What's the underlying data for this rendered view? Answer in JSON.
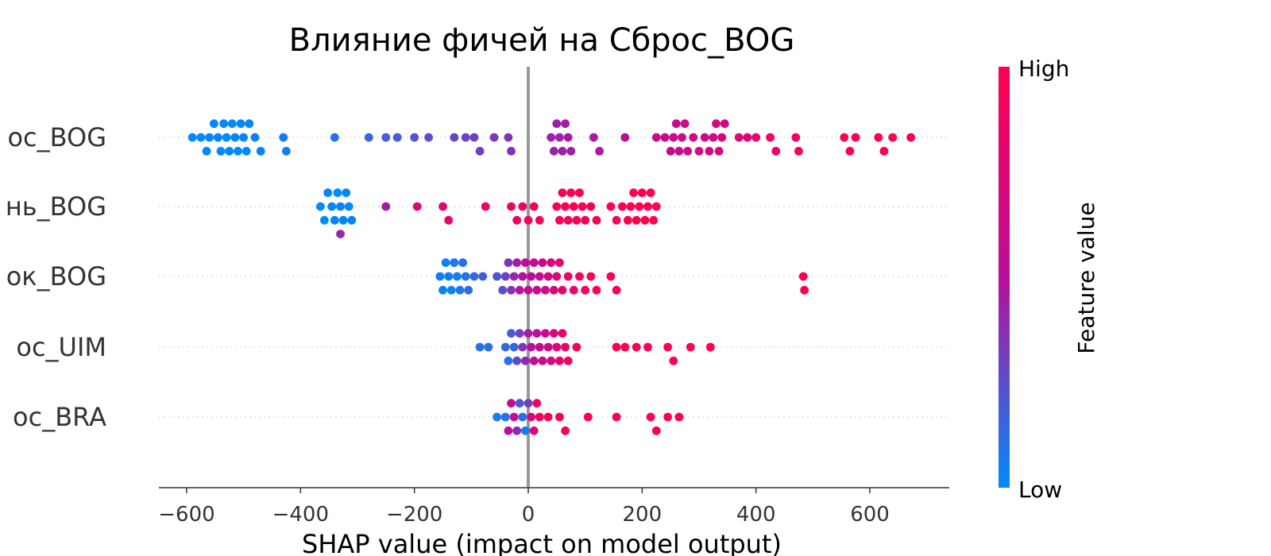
{
  "chart_data": {
    "type": "scatter",
    "title": "Влияние фичей на Сброс_BOG",
    "xlabel": "SHAP value (impact on model output)",
    "xlim": [
      -660,
      740
    ],
    "xticks": [
      -600,
      -400,
      -200,
      0,
      200,
      400,
      600
    ],
    "xtick_labels": [
      "−600",
      "−400",
      "−200",
      "0",
      "200",
      "400",
      "600"
    ],
    "features": [
      "ос_BOG",
      "нь_BOG",
      "ок_BOG",
      "ос_UIM",
      "ос_BRA"
    ],
    "colorbar": {
      "label": "Feature value",
      "high_label": "High",
      "low_label": "Low",
      "low_color": "#008afb",
      "mid_color": "#b90f9a",
      "high_color": "#ff0051"
    },
    "series": [
      {
        "name": "ос_BOG",
        "points": [
          {
            "x": -590,
            "v": 0.0
          },
          {
            "x": -575,
            "v": 0.0
          },
          {
            "x": -565,
            "v": 0.0
          },
          {
            "x": -560,
            "v": 0.02
          },
          {
            "x": -552,
            "v": 0.0
          },
          {
            "x": -545,
            "v": 0.02
          },
          {
            "x": -540,
            "v": 0.0
          },
          {
            "x": -535,
            "v": 0.0
          },
          {
            "x": -530,
            "v": 0.0
          },
          {
            "x": -525,
            "v": 0.02
          },
          {
            "x": -520,
            "v": 0.0
          },
          {
            "x": -515,
            "v": 0.03
          },
          {
            "x": -510,
            "v": 0.0
          },
          {
            "x": -505,
            "v": 0.0
          },
          {
            "x": -500,
            "v": 0.02
          },
          {
            "x": -495,
            "v": 0.0
          },
          {
            "x": -490,
            "v": 0.0
          },
          {
            "x": -480,
            "v": 0.03
          },
          {
            "x": -470,
            "v": 0.02
          },
          {
            "x": -430,
            "v": 0.05
          },
          {
            "x": -425,
            "v": 0.05
          },
          {
            "x": -340,
            "v": 0.1
          },
          {
            "x": -280,
            "v": 0.15
          },
          {
            "x": -250,
            "v": 0.18
          },
          {
            "x": -230,
            "v": 0.2
          },
          {
            "x": -200,
            "v": 0.22
          },
          {
            "x": -175,
            "v": 0.25
          },
          {
            "x": -130,
            "v": 0.28
          },
          {
            "x": -110,
            "v": 0.28
          },
          {
            "x": -95,
            "v": 0.3
          },
          {
            "x": -85,
            "v": 0.3
          },
          {
            "x": -60,
            "v": 0.33
          },
          {
            "x": -35,
            "v": 0.35
          },
          {
            "x": -30,
            "v": 0.36
          },
          {
            "x": 40,
            "v": 0.42
          },
          {
            "x": 45,
            "v": 0.42
          },
          {
            "x": 50,
            "v": 0.43
          },
          {
            "x": 55,
            "v": 0.42
          },
          {
            "x": 60,
            "v": 0.44
          },
          {
            "x": 65,
            "v": 0.43
          },
          {
            "x": 70,
            "v": 0.45
          },
          {
            "x": 75,
            "v": 0.44
          },
          {
            "x": 115,
            "v": 0.46
          },
          {
            "x": 125,
            "v": 0.46
          },
          {
            "x": 170,
            "v": 0.5
          },
          {
            "x": 225,
            "v": 0.58
          },
          {
            "x": 240,
            "v": 0.6
          },
          {
            "x": 250,
            "v": 0.62
          },
          {
            "x": 255,
            "v": 0.6
          },
          {
            "x": 260,
            "v": 0.62
          },
          {
            "x": 265,
            "v": 0.64
          },
          {
            "x": 270,
            "v": 0.62
          },
          {
            "x": 275,
            "v": 0.64
          },
          {
            "x": 280,
            "v": 0.63
          },
          {
            "x": 290,
            "v": 0.64
          },
          {
            "x": 300,
            "v": 0.66
          },
          {
            "x": 310,
            "v": 0.65
          },
          {
            "x": 318,
            "v": 0.66
          },
          {
            "x": 325,
            "v": 0.67
          },
          {
            "x": 330,
            "v": 0.68
          },
          {
            "x": 335,
            "v": 0.68
          },
          {
            "x": 340,
            "v": 0.7
          },
          {
            "x": 345,
            "v": 0.68
          },
          {
            "x": 370,
            "v": 0.74
          },
          {
            "x": 385,
            "v": 0.78
          },
          {
            "x": 400,
            "v": 0.8
          },
          {
            "x": 425,
            "v": 0.84
          },
          {
            "x": 435,
            "v": 0.86
          },
          {
            "x": 470,
            "v": 0.9
          },
          {
            "x": 475,
            "v": 0.92
          },
          {
            "x": 555,
            "v": 0.95
          },
          {
            "x": 565,
            "v": 0.96
          },
          {
            "x": 575,
            "v": 0.96
          },
          {
            "x": 615,
            "v": 0.97
          },
          {
            "x": 625,
            "v": 0.98
          },
          {
            "x": 640,
            "v": 0.98
          },
          {
            "x": 672,
            "v": 1.0
          }
        ]
      },
      {
        "name": "нь_BOG",
        "points": [
          {
            "x": -365,
            "v": 0.0
          },
          {
            "x": -358,
            "v": 0.0
          },
          {
            "x": -352,
            "v": 0.02
          },
          {
            "x": -345,
            "v": 0.0
          },
          {
            "x": -340,
            "v": 0.02
          },
          {
            "x": -335,
            "v": 0.0
          },
          {
            "x": -330,
            "v": 0.03
          },
          {
            "x": -325,
            "v": 0.0
          },
          {
            "x": -320,
            "v": 0.02
          },
          {
            "x": -315,
            "v": 0.0
          },
          {
            "x": -310,
            "v": 0.02
          },
          {
            "x": -330,
            "v": 0.4
          },
          {
            "x": -250,
            "v": 0.45
          },
          {
            "x": -195,
            "v": 0.75
          },
          {
            "x": -150,
            "v": 0.8
          },
          {
            "x": -140,
            "v": 0.82
          },
          {
            "x": -75,
            "v": 0.85
          },
          {
            "x": -30,
            "v": 0.88
          },
          {
            "x": -20,
            "v": 0.9
          },
          {
            "x": -10,
            "v": 0.9
          },
          {
            "x": 0,
            "v": 0.9
          },
          {
            "x": 10,
            "v": 0.92
          },
          {
            "x": 20,
            "v": 0.92
          },
          {
            "x": 50,
            "v": 0.95
          },
          {
            "x": 55,
            "v": 0.95
          },
          {
            "x": 60,
            "v": 0.95
          },
          {
            "x": 65,
            "v": 0.96
          },
          {
            "x": 70,
            "v": 0.96
          },
          {
            "x": 75,
            "v": 0.97
          },
          {
            "x": 80,
            "v": 0.97
          },
          {
            "x": 85,
            "v": 0.97
          },
          {
            "x": 90,
            "v": 0.96
          },
          {
            "x": 95,
            "v": 0.95
          },
          {
            "x": 100,
            "v": 0.96
          },
          {
            "x": 110,
            "v": 0.97
          },
          {
            "x": 120,
            "v": 0.96
          },
          {
            "x": 145,
            "v": 0.98
          },
          {
            "x": 155,
            "v": 0.98
          },
          {
            "x": 165,
            "v": 0.98
          },
          {
            "x": 175,
            "v": 0.99
          },
          {
            "x": 180,
            "v": 0.99
          },
          {
            "x": 185,
            "v": 0.99
          },
          {
            "x": 190,
            "v": 1.0
          },
          {
            "x": 195,
            "v": 1.0
          },
          {
            "x": 200,
            "v": 1.0
          },
          {
            "x": 205,
            "v": 1.0
          },
          {
            "x": 210,
            "v": 0.99
          },
          {
            "x": 215,
            "v": 0.99
          },
          {
            "x": 220,
            "v": 0.99
          },
          {
            "x": 225,
            "v": 0.98
          }
        ]
      },
      {
        "name": "ок_BOG",
        "points": [
          {
            "x": -155,
            "v": 0.05
          },
          {
            "x": -150,
            "v": 0.03
          },
          {
            "x": -145,
            "v": 0.05
          },
          {
            "x": -140,
            "v": 0.04
          },
          {
            "x": -135,
            "v": 0.03
          },
          {
            "x": -130,
            "v": 0.06
          },
          {
            "x": -125,
            "v": 0.05
          },
          {
            "x": -120,
            "v": 0.08
          },
          {
            "x": -115,
            "v": 0.1
          },
          {
            "x": -110,
            "v": 0.08
          },
          {
            "x": -105,
            "v": 0.12
          },
          {
            "x": -95,
            "v": 0.15
          },
          {
            "x": -80,
            "v": 0.18
          },
          {
            "x": -55,
            "v": 0.22
          },
          {
            "x": -45,
            "v": 0.25
          },
          {
            "x": -40,
            "v": 0.3
          },
          {
            "x": -35,
            "v": 0.32
          },
          {
            "x": -30,
            "v": 0.35
          },
          {
            "x": -25,
            "v": 0.4
          },
          {
            "x": -20,
            "v": 0.45
          },
          {
            "x": -15,
            "v": 0.48
          },
          {
            "x": -10,
            "v": 0.5
          },
          {
            "x": -5,
            "v": 0.52
          },
          {
            "x": 0,
            "v": 0.55
          },
          {
            "x": 5,
            "v": 0.5
          },
          {
            "x": 10,
            "v": 0.55
          },
          {
            "x": 15,
            "v": 0.6
          },
          {
            "x": 20,
            "v": 0.58
          },
          {
            "x": 25,
            "v": 0.62
          },
          {
            "x": 30,
            "v": 0.6
          },
          {
            "x": 35,
            "v": 0.65
          },
          {
            "x": 40,
            "v": 0.7
          },
          {
            "x": 45,
            "v": 0.72
          },
          {
            "x": 50,
            "v": 0.75
          },
          {
            "x": 55,
            "v": 0.8
          },
          {
            "x": 60,
            "v": 0.82
          },
          {
            "x": 70,
            "v": 0.85
          },
          {
            "x": 80,
            "v": 0.88
          },
          {
            "x": 90,
            "v": 0.9
          },
          {
            "x": 100,
            "v": 0.92
          },
          {
            "x": 110,
            "v": 0.93
          },
          {
            "x": 120,
            "v": 0.95
          },
          {
            "x": 145,
            "v": 0.96
          },
          {
            "x": 155,
            "v": 0.97
          },
          {
            "x": 483,
            "v": 1.0
          },
          {
            "x": 485,
            "v": 1.0
          }
        ]
      },
      {
        "name": "ос_UIM",
        "points": [
          {
            "x": -85,
            "v": 0.1
          },
          {
            "x": -70,
            "v": 0.12
          },
          {
            "x": -40,
            "v": 0.15
          },
          {
            "x": -35,
            "v": 0.1
          },
          {
            "x": -30,
            "v": 0.2
          },
          {
            "x": -25,
            "v": 0.15
          },
          {
            "x": -20,
            "v": 0.25
          },
          {
            "x": -15,
            "v": 0.3
          },
          {
            "x": -10,
            "v": 0.35
          },
          {
            "x": -5,
            "v": 0.4
          },
          {
            "x": 0,
            "v": 0.45
          },
          {
            "x": 5,
            "v": 0.5
          },
          {
            "x": 10,
            "v": 0.55
          },
          {
            "x": 15,
            "v": 0.5
          },
          {
            "x": 20,
            "v": 0.55
          },
          {
            "x": 25,
            "v": 0.6
          },
          {
            "x": 30,
            "v": 0.6
          },
          {
            "x": 35,
            "v": 0.65
          },
          {
            "x": 40,
            "v": 0.7
          },
          {
            "x": 45,
            "v": 0.72
          },
          {
            "x": 50,
            "v": 0.75
          },
          {
            "x": 55,
            "v": 0.8
          },
          {
            "x": 60,
            "v": 0.82
          },
          {
            "x": 65,
            "v": 0.85
          },
          {
            "x": 70,
            "v": 0.88
          },
          {
            "x": 85,
            "v": 0.9
          },
          {
            "x": 155,
            "v": 0.95
          },
          {
            "x": 170,
            "v": 0.96
          },
          {
            "x": 190,
            "v": 0.96
          },
          {
            "x": 210,
            "v": 0.97
          },
          {
            "x": 245,
            "v": 0.97
          },
          {
            "x": 255,
            "v": 0.98
          },
          {
            "x": 285,
            "v": 0.98
          },
          {
            "x": 320,
            "v": 1.0
          }
        ]
      },
      {
        "name": "ос_BRA",
        "points": [
          {
            "x": -55,
            "v": 0.05
          },
          {
            "x": -40,
            "v": 0.1
          },
          {
            "x": -35,
            "v": 0.5
          },
          {
            "x": -30,
            "v": 0.6
          },
          {
            "x": -25,
            "v": 0.55
          },
          {
            "x": -20,
            "v": 0.4
          },
          {
            "x": -15,
            "v": 0.2
          },
          {
            "x": -10,
            "v": 0.1
          },
          {
            "x": -5,
            "v": 0.05
          },
          {
            "x": 0,
            "v": 0.3
          },
          {
            "x": 5,
            "v": 0.7
          },
          {
            "x": 10,
            "v": 0.8
          },
          {
            "x": 15,
            "v": 0.85
          },
          {
            "x": 20,
            "v": 0.9
          },
          {
            "x": 35,
            "v": 0.92
          },
          {
            "x": 55,
            "v": 0.95
          },
          {
            "x": 65,
            "v": 0.96
          },
          {
            "x": 105,
            "v": 0.97
          },
          {
            "x": 155,
            "v": 0.98
          },
          {
            "x": 215,
            "v": 0.98
          },
          {
            "x": 225,
            "v": 0.99
          },
          {
            "x": 245,
            "v": 0.99
          },
          {
            "x": 265,
            "v": 1.0
          }
        ]
      }
    ]
  }
}
